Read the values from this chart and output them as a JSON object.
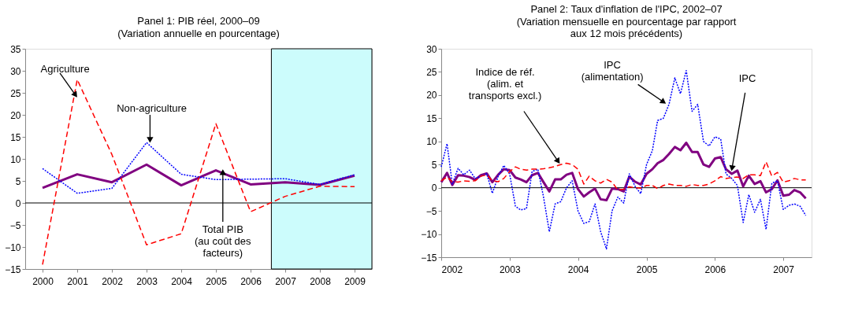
{
  "chart_data": [
    {
      "type": "line",
      "title": "Panel 1: PIB réel, 2000–09",
      "subtitle": "(Variation annuelle en pourcentage)",
      "x": [
        2000,
        2001,
        2002,
        2003,
        2004,
        2005,
        2006,
        2007,
        2008,
        2009
      ],
      "xlim": [
        1999.5,
        2009.5
      ],
      "xticks": [
        2000,
        2001,
        2002,
        2003,
        2004,
        2005,
        2006,
        2007,
        2008,
        2009
      ],
      "ylim": [
        -15,
        35
      ],
      "yticks": [
        -15,
        -10,
        -5,
        0,
        5,
        10,
        15,
        20,
        25,
        30,
        35
      ],
      "series": [
        {
          "name": "Agriculture",
          "color": "#ff0000",
          "line_style": "dashed",
          "values": [
            -14,
            28,
            11,
            -9.5,
            -7,
            18,
            -2,
            1.5,
            3.8,
            3.7
          ]
        },
        {
          "name": "Non-agriculture",
          "color": "#0000ff",
          "line_style": "dotted",
          "values": [
            7.8,
            2.2,
            3.3,
            13.7,
            6.5,
            5.3,
            5.4,
            5.5,
            4.2,
            6.4
          ]
        },
        {
          "name": "Total PIB\n(au coût des\nfacteurs)",
          "color": "#800080",
          "line_style": "solid",
          "values": [
            3.4,
            6.5,
            4.7,
            8.7,
            4.0,
            7.4,
            4.2,
            4.7,
            4.1,
            6.2
          ]
        }
      ],
      "bands": [
        {
          "axis": "x",
          "from": 2006.6,
          "to": 2009.5,
          "color": "#ccfcfc"
        }
      ],
      "ref_lines": [
        {
          "axis": "y",
          "value": 0
        }
      ],
      "grid": false,
      "marker": "none"
    },
    {
      "type": "line",
      "title": "Panel 2: Taux d'inflation de l'IPC, 2002–07",
      "subtitle": "(Variation mensuelle en pourcentage par rapport\naux 12 mois précédents)",
      "x": [
        "2002-01",
        "2002-02",
        "2002-03",
        "2002-04",
        "2002-05",
        "2002-06",
        "2002-07",
        "2002-08",
        "2002-09",
        "2002-10",
        "2002-11",
        "2002-12",
        "2003-01",
        "2003-02",
        "2003-03",
        "2003-04",
        "2003-05",
        "2003-06",
        "2003-07",
        "2003-08",
        "2003-09",
        "2003-10",
        "2003-11",
        "2003-12",
        "2004-01",
        "2004-02",
        "2004-03",
        "2004-04",
        "2004-05",
        "2004-06",
        "2004-07",
        "2004-08",
        "2004-09",
        "2004-10",
        "2004-11",
        "2004-12",
        "2005-01",
        "2005-02",
        "2005-03",
        "2005-04",
        "2005-05",
        "2005-06",
        "2005-07",
        "2005-08",
        "2005-09",
        "2005-10",
        "2005-11",
        "2005-12",
        "2006-01",
        "2006-02",
        "2006-03",
        "2006-04",
        "2006-05",
        "2006-06",
        "2006-07",
        "2006-08",
        "2006-09",
        "2006-10",
        "2006-11",
        "2006-12",
        "2007-01",
        "2007-02",
        "2007-03",
        "2007-04",
        "2007-05"
      ],
      "xlim": [
        "2002-01",
        "2007-06"
      ],
      "xticks": [
        "2002",
        "2003",
        "2004",
        "2005",
        "2006",
        "2007"
      ],
      "ylim": [
        -15,
        30
      ],
      "yticks": [
        -15,
        -10,
        -5,
        0,
        5,
        10,
        15,
        20,
        25,
        30
      ],
      "series": [
        {
          "name": "IPC\n(alimentation)",
          "color": "#0000ff",
          "line_style": "dotted",
          "values": [
            4.5,
            9.5,
            0.8,
            4.2,
            2.8,
            3.8,
            2.0,
            2.5,
            3.0,
            -1.2,
            2.5,
            4.8,
            3.0,
            -4.0,
            -4.8,
            -4.5,
            3.5,
            4.0,
            -2.0,
            -9.5,
            -3.5,
            -3.0,
            0.0,
            1.5,
            -5.0,
            -7.7,
            -7.3,
            -3.5,
            -9.5,
            -13.2,
            -5.0,
            -2.0,
            -3.3,
            3.0,
            0.3,
            -1.3,
            5.0,
            8.0,
            14.5,
            15.0,
            18.0,
            23.7,
            20.3,
            25.3,
            16.5,
            18.0,
            10.0,
            9.0,
            11.0,
            10.5,
            3.0,
            2.0,
            0.5,
            -7.5,
            -1.5,
            -5.3,
            -2.5,
            -9.0,
            1.0,
            1.5,
            -4.7,
            -3.8,
            -3.5,
            -4.0,
            -6.0
          ]
        },
        {
          "name": "Indice de réf.\n(alim. et\ntransports excl.)",
          "color": "#ff0000",
          "line_style": "dashed",
          "values": [
            1.5,
            2.3,
            1.3,
            1.2,
            1.5,
            1.4,
            1.5,
            2.5,
            2.8,
            1.5,
            1.3,
            2.0,
            3.5,
            4.5,
            4.0,
            3.8,
            4.0,
            4.0,
            4.1,
            4.3,
            4.6,
            5.0,
            5.3,
            5.0,
            4.0,
            0.8,
            2.5,
            1.5,
            1.0,
            1.8,
            1.2,
            -0.5,
            -0.3,
            0.2,
            0.0,
            -0.1,
            0.5,
            0.5,
            -0.2,
            0.5,
            0.8,
            0.5,
            0.5,
            0.3,
            0.7,
            0.5,
            0.5,
            0.8,
            1.5,
            2.4,
            2.0,
            2.2,
            2.3,
            2.0,
            2.8,
            2.8,
            2.6,
            5.6,
            2.5,
            3.3,
            1.2,
            1.5,
            2.0,
            1.7,
            1.7
          ]
        },
        {
          "name": "IPC",
          "color": "#800080",
          "line_style": "solid",
          "values": [
            1.2,
            3.2,
            0.6,
            2.7,
            2.6,
            2.3,
            1.7,
            2.7,
            3.1,
            1.2,
            2.8,
            4.0,
            3.8,
            2.2,
            1.8,
            1.2,
            2.7,
            3.2,
            1.2,
            -0.8,
            1.8,
            1.8,
            2.8,
            3.2,
            -0.3,
            -1.9,
            -1.0,
            -0.2,
            -2.5,
            -2.7,
            -0.2,
            -0.3,
            -0.8,
            2.4,
            1.3,
            0.7,
            3.0,
            4.0,
            5.3,
            6.0,
            7.3,
            8.8,
            8.1,
            9.7,
            7.7,
            7.7,
            5.0,
            4.5,
            6.3,
            6.6,
            4.0,
            3.0,
            3.7,
            0.3,
            2.6,
            0.8,
            1.4,
            -1.0,
            -0.3,
            1.6,
            -1.7,
            -1.5,
            -0.5,
            -1.0,
            -2.3
          ]
        }
      ],
      "ref_lines": [
        {
          "axis": "y",
          "value": 0
        }
      ],
      "grid": false,
      "marker": "none"
    }
  ]
}
